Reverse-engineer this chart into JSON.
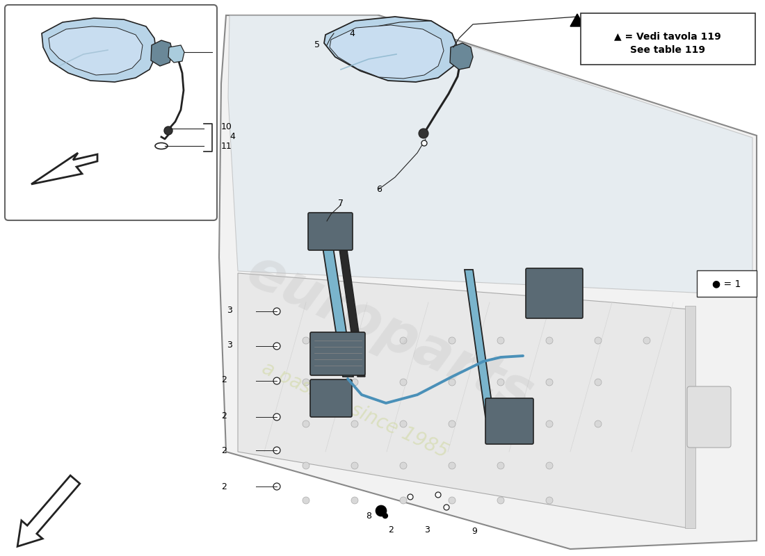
{
  "bg_color": "#ffffff",
  "lc": "#222222",
  "mirror_fill": "#b8d4e8",
  "mirror_fill2": "#c8ddf0",
  "dark_blue": "#5a8aaa",
  "rail_blue": "#7ab4cc",
  "bracket_gray": "#5a6a74",
  "door_fill": "#f0f0f0",
  "door_edge": "#888888",
  "wm_color1": "#c0c0c0",
  "wm_color2": "#d0d8a0",
  "legend_text1": "▲ = Vedi tavola 119",
  "legend_text2": "See table 119",
  "dot_text": "● = 1"
}
